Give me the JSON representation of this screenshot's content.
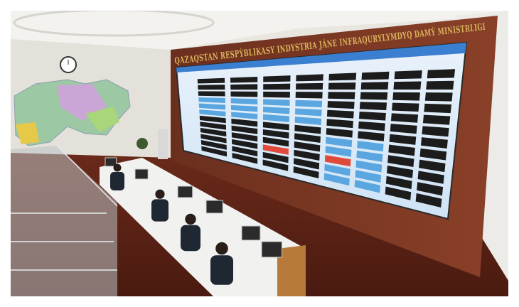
{
  "wall_sign": {
    "text": "QAZAQSTAN RESPÝBLIKASY INDYSTRIA JÁNE INFRAQURYLYMDYQ DAMÝ MINISTRLIGI"
  }
}
